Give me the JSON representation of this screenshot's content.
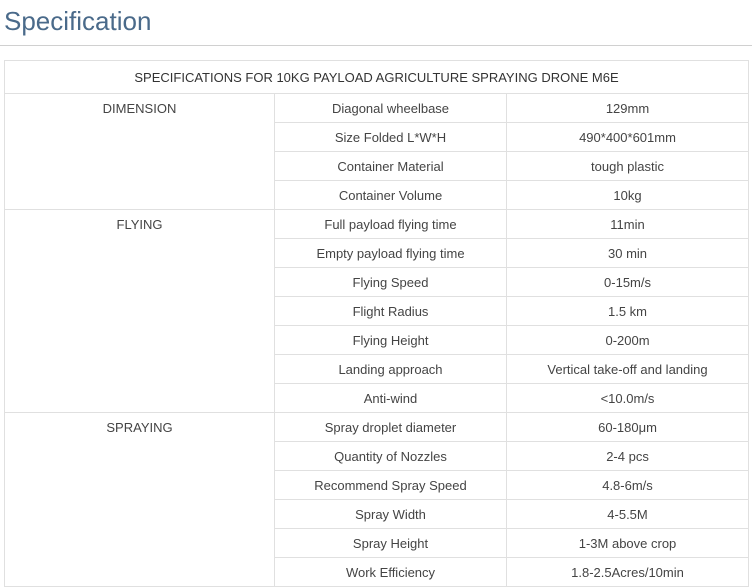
{
  "title": "Specification",
  "tableTitle": "SPECIFICATIONS FOR 10KG PAYLOAD AGRICULTURE SPRAYING DRONE M6E",
  "columns": {
    "category_w": 270,
    "param_w": 232,
    "value_w": 242
  },
  "colors": {
    "title_color": "#4a6a8a",
    "border_color": "#e0e0e0",
    "text_color": "#444444",
    "divider_color": "#d0d0d0",
    "background": "#ffffff"
  },
  "typography": {
    "title_fontsize": 26,
    "cell_fontsize": 13,
    "font_family": "Arial"
  },
  "sections": [
    {
      "name": "DIMENSION",
      "rows": [
        {
          "param": "Diagonal wheelbase",
          "value": "129mm"
        },
        {
          "param": "Size Folded L*W*H",
          "value": "490*400*601mm"
        },
        {
          "param": "Container Material",
          "value": "tough plastic"
        },
        {
          "param": "Container Volume",
          "value": "10kg"
        }
      ]
    },
    {
      "name": "FLYING",
      "rows": [
        {
          "param": "Full payload flying time",
          "value": "11min"
        },
        {
          "param": "Empty payload flying time",
          "value": "30 min"
        },
        {
          "param": "Flying Speed",
          "value": "0-15m/s"
        },
        {
          "param": "Flight Radius",
          "value": "1.5 km"
        },
        {
          "param": "Flying Height",
          "value": "0-200m"
        },
        {
          "param": "Landing approach",
          "value": "Vertical take-off and landing"
        },
        {
          "param": "Anti-wind",
          "value": "<10.0m/s"
        }
      ]
    },
    {
      "name": "SPRAYING",
      "rows": [
        {
          "param": "Spray droplet diameter",
          "value": "60-180μm"
        },
        {
          "param": "Quantity of Nozzles",
          "value": "2-4 pcs"
        },
        {
          "param": "Recommend Spray Speed",
          "value": "4.8-6m/s"
        },
        {
          "param": "Spray Width",
          "value": "4-5.5M"
        },
        {
          "param": "Spray Height",
          "value": "1-3M above crop"
        },
        {
          "param": "Work Efficiency",
          "value": "1.8-2.5Acres/10min"
        }
      ]
    }
  ]
}
